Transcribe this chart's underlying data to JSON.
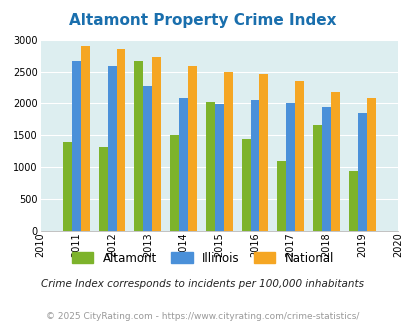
{
  "title": "Altamont Property Crime Index",
  "years": [
    2010,
    2011,
    2012,
    2013,
    2014,
    2015,
    2016,
    2017,
    2018,
    2019,
    2020
  ],
  "bar_years": [
    2011,
    2012,
    2013,
    2014,
    2015,
    2016,
    2017,
    2018,
    2019
  ],
  "altamont": [
    1400,
    1320,
    2670,
    1510,
    2020,
    1440,
    1090,
    1660,
    940
  ],
  "illinois": [
    2660,
    2580,
    2270,
    2080,
    1995,
    2050,
    2010,
    1940,
    1850
  ],
  "national": [
    2900,
    2860,
    2730,
    2590,
    2500,
    2460,
    2350,
    2180,
    2090
  ],
  "altamont_color": "#7db32b",
  "illinois_color": "#4a90d9",
  "national_color": "#f5a623",
  "bg_color": "#ddeef0",
  "ylim": [
    0,
    3000
  ],
  "yticks": [
    0,
    500,
    1000,
    1500,
    2000,
    2500,
    3000
  ],
  "footnote": "Crime Index corresponds to incidents per 100,000 inhabitants",
  "copyright": "© 2025 CityRating.com - https://www.cityrating.com/crime-statistics/",
  "legend_labels": [
    "Altamont",
    "Illinois",
    "National"
  ],
  "title_color": "#1a6fad",
  "footnote_color": "#222222",
  "copyright_color": "#999999",
  "bar_width": 0.25
}
